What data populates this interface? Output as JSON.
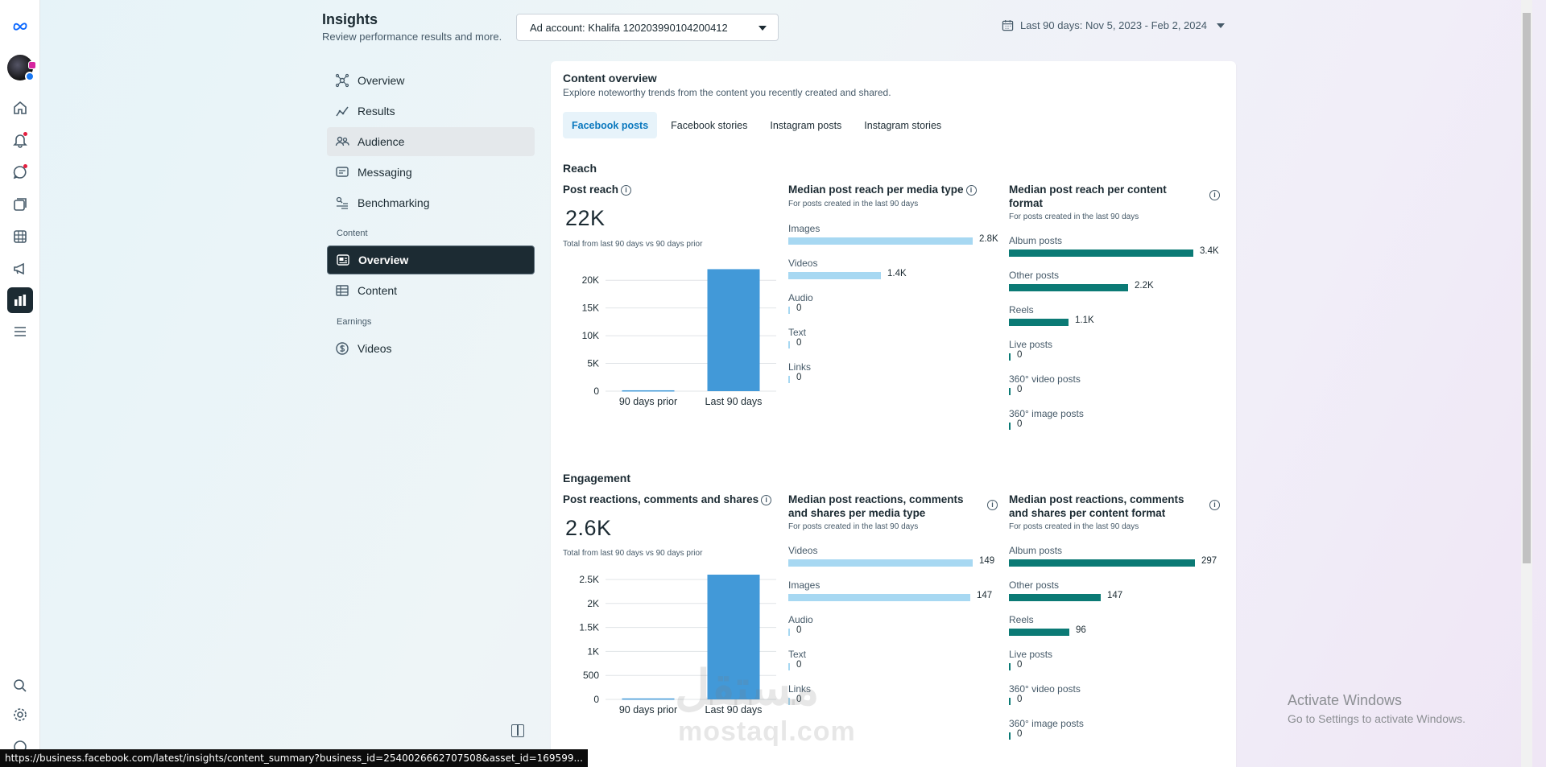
{
  "header": {
    "title": "Insights",
    "subtitle": "Review performance results and more.",
    "ad_account": "Ad account: Khalifa 120203990104200412",
    "date_range": "Last 90 days: Nov 5, 2023 - Feb 2, 2024"
  },
  "rail": {
    "icons": [
      "meta-logo-icon",
      "profile-avatar",
      "home-icon",
      "notifications-icon",
      "messages-icon",
      "pages-icon",
      "table-icon",
      "megaphone-icon",
      "insights-icon",
      "menu-icon",
      "search-icon",
      "settings-icon",
      "help-icon"
    ]
  },
  "nav": {
    "overview": "Overview",
    "results": "Results",
    "audience": "Audience",
    "messaging": "Messaging",
    "benchmarking": "Benchmarking",
    "content_section": "Content",
    "content_overview": "Overview",
    "content": "Content",
    "earnings_section": "Earnings",
    "videos": "Videos"
  },
  "card": {
    "title": "Content overview",
    "subtitle": "Explore noteworthy trends from the content you recently created and shared.",
    "tabs": [
      "Facebook posts",
      "Facebook stories",
      "Instagram posts",
      "Instagram stories"
    ]
  },
  "reach": {
    "heading": "Reach",
    "post_reach_title": "Post reach",
    "post_reach_value": "22K",
    "post_reach_note": "Total from last 90 days vs 90 days prior",
    "media_type_title": "Median post reach per media type",
    "media_type_sub": "For posts created in the last 90 days",
    "media_types": [
      {
        "label": "Images",
        "value": 2.8,
        "display": "2.8K"
      },
      {
        "label": "Videos",
        "value": 1.4,
        "display": "1.4K"
      },
      {
        "label": "Audio",
        "value": 0,
        "display": "0"
      },
      {
        "label": "Text",
        "value": 0,
        "display": "0"
      },
      {
        "label": "Links",
        "value": 0,
        "display": "0"
      }
    ],
    "content_format_title": "Median post reach per content format",
    "content_format_sub": "For posts created in the last 90 days",
    "content_formats": [
      {
        "label": "Album posts",
        "value": 3.4,
        "display": "3.4K"
      },
      {
        "label": "Other posts",
        "value": 2.2,
        "display": "2.2K"
      },
      {
        "label": "Reels",
        "value": 1.1,
        "display": "1.1K"
      },
      {
        "label": "Live posts",
        "value": 0,
        "display": "0"
      },
      {
        "label": "360° video posts",
        "value": 0,
        "display": "0"
      },
      {
        "label": "360° image posts",
        "value": 0,
        "display": "0"
      }
    ]
  },
  "engagement": {
    "heading": "Engagement",
    "total_title": "Post reactions, comments and shares",
    "total_value": "2.6K",
    "total_note": "Total from last 90 days vs 90 days prior",
    "media_type_title": "Median post reactions, comments and shares per media type",
    "media_type_sub": "For posts created in the last 90 days",
    "media_types": [
      {
        "label": "Videos",
        "value": 149,
        "display": "149"
      },
      {
        "label": "Images",
        "value": 147,
        "display": "147"
      },
      {
        "label": "Audio",
        "value": 0,
        "display": "0"
      },
      {
        "label": "Text",
        "value": 0,
        "display": "0"
      },
      {
        "label": "Links",
        "value": 0,
        "display": "0"
      }
    ],
    "content_format_title": "Median post reactions, comments and shares per content format",
    "content_format_sub": "For posts created in the last 90 days",
    "content_formats": [
      {
        "label": "Album posts",
        "value": 297,
        "display": "297"
      },
      {
        "label": "Other posts",
        "value": 147,
        "display": "147"
      },
      {
        "label": "Reels",
        "value": 96,
        "display": "96"
      },
      {
        "label": "Live posts",
        "value": 0,
        "display": "0"
      },
      {
        "label": "360° video posts",
        "value": 0,
        "display": "0"
      },
      {
        "label": "360° image posts",
        "value": 0,
        "display": "0"
      }
    ]
  },
  "chart_data": [
    {
      "type": "bar",
      "title": "Post reach",
      "categories": [
        "90 days prior",
        "Last 90 days"
      ],
      "values": [
        150,
        22000
      ],
      "yticks": [
        "0",
        "5K",
        "10K",
        "15K",
        "20K"
      ],
      "ytick_values": [
        0,
        5000,
        10000,
        15000,
        20000
      ],
      "ylim": [
        0,
        22500
      ],
      "color": "#4299d8"
    },
    {
      "type": "bar",
      "title": "Post reactions, comments and shares",
      "categories": [
        "90 days prior",
        "Last 90 days"
      ],
      "values": [
        20,
        2600
      ],
      "yticks": [
        "0",
        "500",
        "1K",
        "1.5K",
        "2K",
        "2.5K"
      ],
      "ytick_values": [
        0,
        500,
        1000,
        1500,
        2000,
        2500
      ],
      "ylim": [
        0,
        2600
      ],
      "color": "#4299d8"
    }
  ],
  "colors": {
    "accent": "#0a78be",
    "bar_blue": "#4299d8",
    "bar_light": "#a7d8f2",
    "bar_teal": "#0b7a75"
  },
  "overlays": {
    "watermark_ar": "مستقل",
    "watermark_en": "mostaql.com",
    "activate_title": "Activate Windows",
    "activate_sub": "Go to Settings to activate Windows.",
    "status_url": "https://business.facebook.com/latest/insights/content_summary?business_id=2540026662707508&asset_id=169599..."
  }
}
